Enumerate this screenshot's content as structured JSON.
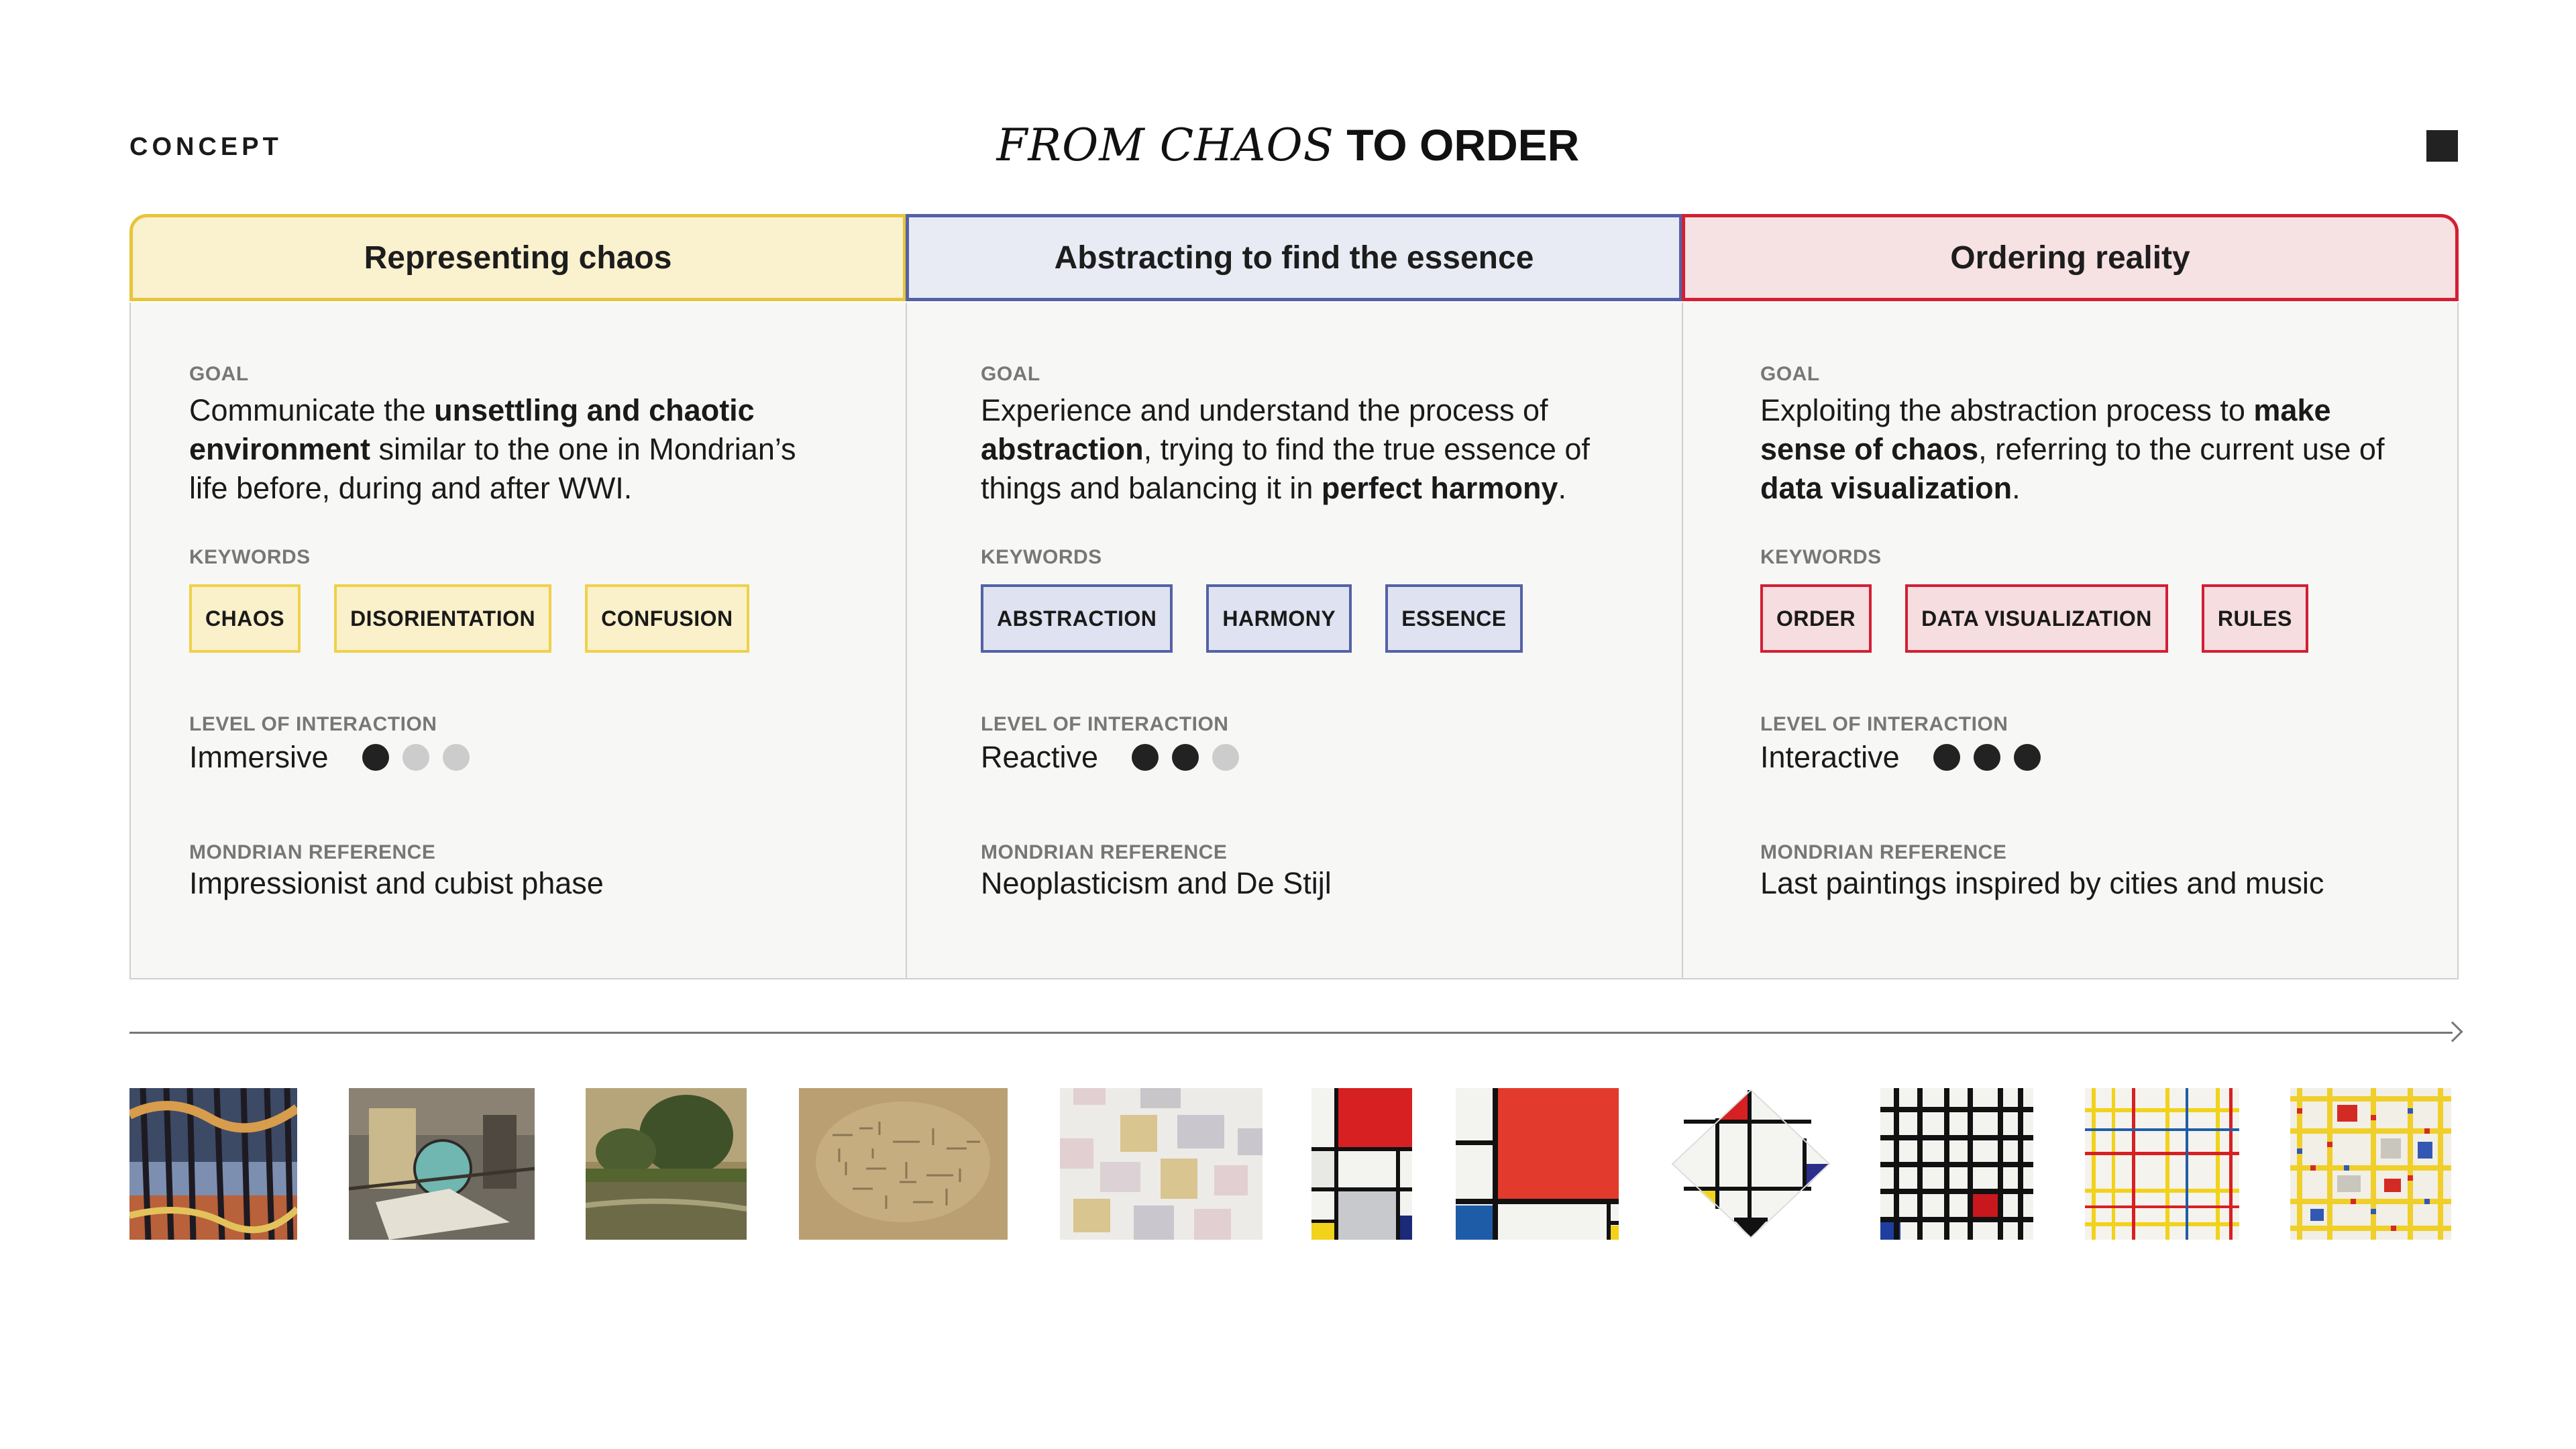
{
  "header": {
    "section_label": "CONCEPT",
    "title_italic": "FROM CHAOS",
    "title_bold": "TO ORDER"
  },
  "columns": [
    {
      "title": "Representing chaos",
      "goal_label": "GOAL",
      "goal_parts": [
        {
          "text": "Communicate the ",
          "bold": false
        },
        {
          "text": "unsettling and chaotic environment",
          "bold": true
        },
        {
          "text": " similar to the one in Mondrian’s life before, during and after WWI.",
          "bold": false
        }
      ],
      "keywords_label": "KEYWORDS",
      "keywords": [
        "CHAOS",
        "DISORIENTATION",
        "CONFUSION"
      ],
      "interaction_label": "LEVEL OF INTERACTION",
      "interaction_value": "Immersive",
      "interaction_level": 1,
      "interaction_max": 3,
      "reference_label": "MONDRIAN REFERENCE",
      "reference_value": "Impressionist and cubist phase",
      "accent": "#e6c53a"
    },
    {
      "title": "Abstracting to find the essence",
      "goal_label": "GOAL",
      "goal_parts": [
        {
          "text": "Experience and understand the process of ",
          "bold": false
        },
        {
          "text": "abstraction",
          "bold": true
        },
        {
          "text": ", trying to find the true essence of things and balancing it in ",
          "bold": false
        },
        {
          "text": "perfect harmony",
          "bold": true
        },
        {
          "text": ".",
          "bold": false
        }
      ],
      "keywords_label": "KEYWORDS",
      "keywords": [
        "ABSTRACTION",
        "HARMONY",
        "ESSENCE"
      ],
      "interaction_label": "LEVEL OF INTERACTION",
      "interaction_value": "Reactive",
      "interaction_level": 2,
      "interaction_max": 3,
      "reference_label": "MONDRIAN REFERENCE",
      "reference_value": "Neoplasticism and De Stijl",
      "accent": "#5461a6"
    },
    {
      "title": "Ordering reality",
      "goal_label": "GOAL",
      "goal_parts": [
        {
          "text": "Exploiting the abstraction process to ",
          "bold": false
        },
        {
          "text": "make sense of chaos",
          "bold": true
        },
        {
          "text": ", referring to the current use of ",
          "bold": false
        },
        {
          "text": "data visualization",
          "bold": true
        },
        {
          "text": ".",
          "bold": false
        }
      ],
      "keywords_label": "KEYWORDS",
      "keywords": [
        "ORDER",
        "DATA VISUALIZATION",
        "RULES"
      ],
      "interaction_label": "LEVEL OF INTERACTION",
      "interaction_value": "Interactive",
      "interaction_level": 3,
      "interaction_max": 3,
      "reference_label": "MONDRIAN REFERENCE",
      "reference_value": "Last paintings inspired by cities and music",
      "accent": "#d31f33"
    }
  ],
  "timeline": {
    "paintings": [
      "mondrian-woods-painting",
      "mondrian-still-life-painting",
      "mondrian-river-landscape-painting",
      "mondrian-tree-pier-ocean-painting",
      "mondrian-color-planes-painting",
      "mondrian-composition-red-blue-yellow-1",
      "mondrian-composition-red-large",
      "mondrian-lozenge-composition",
      "mondrian-black-grid-composition",
      "mondrian-new-york-city-painting",
      "mondrian-broadway-boogie-woogie"
    ]
  }
}
